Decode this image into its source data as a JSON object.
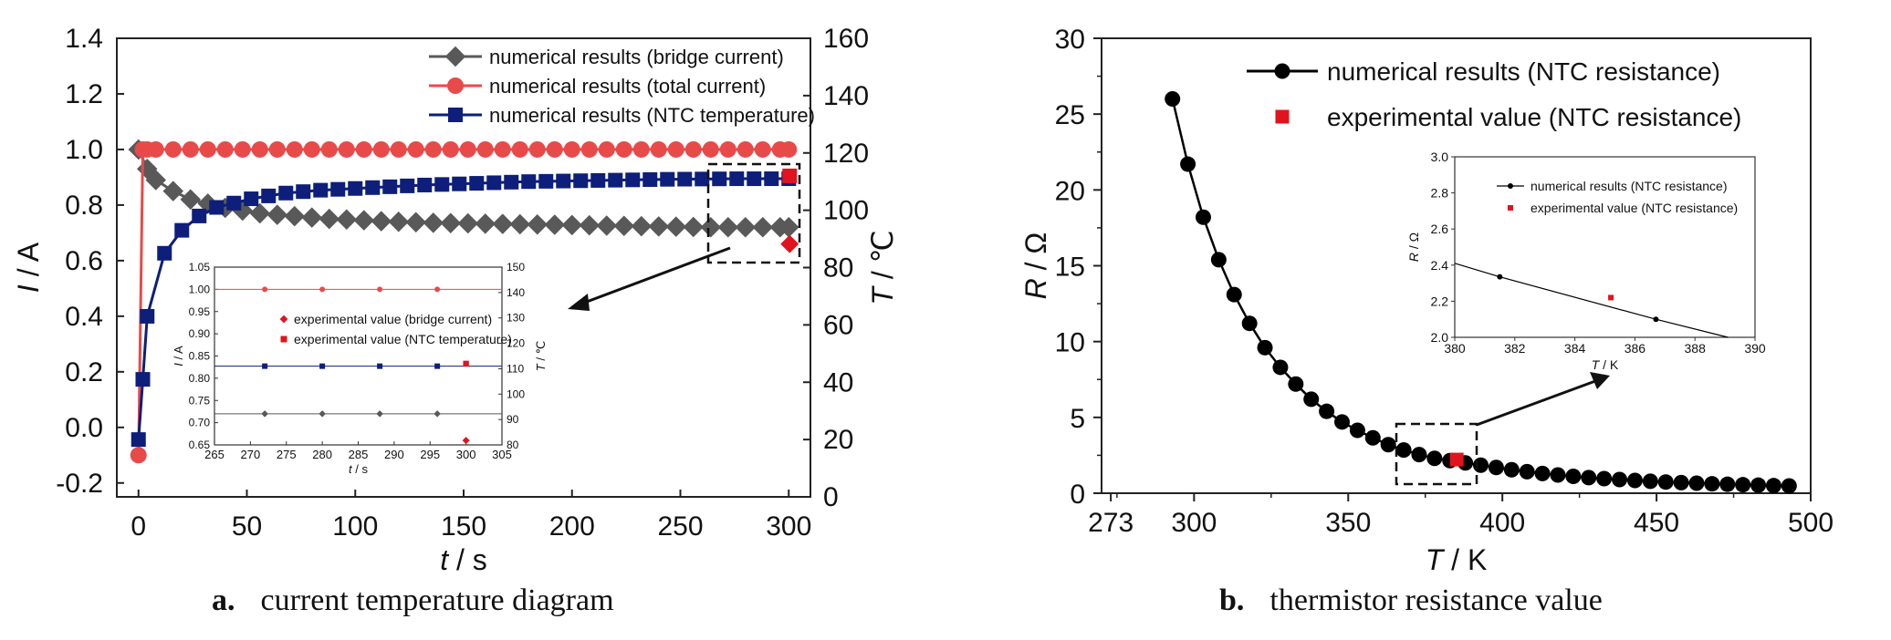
{
  "chart_data": [
    {
      "id": "a",
      "type": "line",
      "caption_letter": "a.",
      "caption_text": "current temperature diagram",
      "xlabel": "t / s",
      "ylabel_left": "I / A",
      "ylabel_right": "T / ℃",
      "xlim": [
        -10,
        310
      ],
      "xticks": [
        0,
        50,
        100,
        150,
        200,
        250,
        300
      ],
      "ylim_left": [
        -0.25,
        1.4
      ],
      "yticks_left": [
        -0.2,
        0.0,
        0.2,
        0.4,
        0.6,
        0.8,
        1.0,
        1.2,
        1.4
      ],
      "ylim_right": [
        0,
        160
      ],
      "yticks_right": [
        0,
        20,
        40,
        60,
        80,
        100,
        120,
        140,
        160
      ],
      "legend_position": "top-right",
      "series": [
        {
          "name": "numerical results (bridge current)",
          "axis": "left",
          "marker": "diamond",
          "color": "#595959",
          "x": [
            0,
            4,
            8,
            16,
            24,
            32,
            40,
            48,
            56,
            64,
            72,
            80,
            88,
            96,
            104,
            112,
            120,
            128,
            136,
            144,
            152,
            160,
            168,
            176,
            184,
            192,
            200,
            208,
            216,
            224,
            232,
            240,
            248,
            256,
            264,
            272,
            280,
            288,
            296,
            300
          ],
          "y": [
            1.0,
            0.93,
            0.89,
            0.85,
            0.82,
            0.805,
            0.79,
            0.78,
            0.77,
            0.765,
            0.76,
            0.755,
            0.75,
            0.748,
            0.745,
            0.742,
            0.74,
            0.738,
            0.736,
            0.735,
            0.734,
            0.733,
            0.732,
            0.731,
            0.73,
            0.729,
            0.728,
            0.727,
            0.726,
            0.725,
            0.724,
            0.723,
            0.722,
            0.721,
            0.72,
            0.72,
            0.72,
            0.72,
            0.72,
            0.72
          ]
        },
        {
          "name": "numerical results (total current)",
          "axis": "left",
          "marker": "circle",
          "color": "#e84a4a",
          "x": [
            0,
            2,
            4,
            8,
            16,
            24,
            32,
            40,
            48,
            56,
            64,
            72,
            80,
            88,
            96,
            104,
            112,
            120,
            128,
            136,
            144,
            152,
            160,
            168,
            176,
            184,
            192,
            200,
            208,
            216,
            224,
            232,
            240,
            248,
            256,
            264,
            272,
            280,
            288,
            296,
            300
          ],
          "y": [
            -0.1,
            1.0,
            1.0,
            1.0,
            1.0,
            1.0,
            1.0,
            1.0,
            1.0,
            1.0,
            1.0,
            1.0,
            1.0,
            1.0,
            1.0,
            1.0,
            1.0,
            1.0,
            1.0,
            1.0,
            1.0,
            1.0,
            1.0,
            1.0,
            1.0,
            1.0,
            1.0,
            1.0,
            1.0,
            1.0,
            1.0,
            1.0,
            1.0,
            1.0,
            1.0,
            1.0,
            1.0,
            1.0,
            1.0,
            1.0,
            1.0
          ]
        },
        {
          "name": "numerical results (NTC temperature)",
          "axis": "right",
          "marker": "square",
          "color": "#0d1f7a",
          "x": [
            0,
            2,
            4,
            12,
            20,
            28,
            36,
            44,
            52,
            60,
            68,
            76,
            84,
            92,
            100,
            108,
            116,
            124,
            132,
            140,
            148,
            156,
            164,
            172,
            180,
            188,
            196,
            204,
            212,
            220,
            228,
            236,
            244,
            252,
            260,
            268,
            276,
            284,
            292,
            300
          ],
          "y": [
            20,
            41,
            63,
            85,
            93,
            98,
            101,
            102.5,
            104,
            105,
            106,
            106.5,
            107,
            107.3,
            107.6,
            107.9,
            108.2,
            108.5,
            108.8,
            109,
            109.2,
            109.4,
            109.6,
            109.8,
            110,
            110.1,
            110.2,
            110.3,
            110.4,
            110.5,
            110.6,
            110.7,
            110.8,
            110.85,
            110.9,
            110.95,
            111,
            111,
            111,
            111
          ]
        }
      ],
      "experimental": [
        {
          "name": "experimental value (bridge current)",
          "axis": "left",
          "marker": "diamond",
          "color": "#e0141e",
          "x": 300,
          "y": 0.66
        },
        {
          "name": "experimental value (NTC temperature)",
          "axis": "right",
          "marker": "square",
          "color": "#e0141e",
          "x": 300,
          "y": 112
        }
      ],
      "inset": {
        "xlim": [
          265,
          305
        ],
        "xticks": [
          265,
          270,
          275,
          280,
          285,
          290,
          295,
          300,
          305
        ],
        "xlabel": "t / s",
        "ylabel_left": "I / A",
        "ylabel_right": "T / ℃",
        "ylim_left": [
          0.65,
          1.05
        ],
        "yticks_left": [
          0.65,
          0.7,
          0.75,
          0.8,
          0.85,
          0.9,
          0.95,
          1.0,
          1.05
        ],
        "ylim_right": [
          80,
          150
        ],
        "yticks_right": [
          80,
          90,
          100,
          110,
          120,
          130,
          140,
          150
        ],
        "legend": [
          "experimental value (bridge current)",
          "experimental value (NTC temperature)"
        ],
        "points_x": [
          272,
          280,
          288,
          296
        ]
      }
    },
    {
      "id": "b",
      "type": "line",
      "caption_letter": "b.",
      "caption_text": "thermistor resistance value",
      "xlabel": "T / K",
      "ylabel": "R / Ω",
      "xlim": [
        270,
        500
      ],
      "xticks": [
        273,
        300,
        350,
        400,
        450,
        500
      ],
      "ylim": [
        0,
        30
      ],
      "yticks": [
        0,
        5,
        10,
        15,
        20,
        25,
        30
      ],
      "legend_position": "top-right",
      "series": [
        {
          "name": "numerical results (NTC resistance)",
          "marker": "circle",
          "color": "#000000",
          "x": [
            293,
            298,
            303,
            308,
            313,
            318,
            323,
            328,
            333,
            338,
            343,
            348,
            353,
            358,
            363,
            368,
            373,
            378,
            383,
            388,
            393,
            398,
            403,
            408,
            413,
            418,
            423,
            428,
            433,
            438,
            443,
            448,
            453,
            458,
            463,
            468,
            473,
            478,
            483,
            488,
            493
          ],
          "y": [
            26,
            21.7,
            18.2,
            15.4,
            13.1,
            11.2,
            9.6,
            8.3,
            7.2,
            6.2,
            5.4,
            4.7,
            4.15,
            3.65,
            3.2,
            2.85,
            2.55,
            2.3,
            2.15,
            2.0,
            1.85,
            1.7,
            1.55,
            1.42,
            1.3,
            1.2,
            1.11,
            1.03,
            0.96,
            0.9,
            0.84,
            0.79,
            0.74,
            0.7,
            0.66,
            0.62,
            0.59,
            0.56,
            0.53,
            0.5,
            0.48
          ]
        }
      ],
      "experimental": [
        {
          "name": "experimental value (NTC resistance)",
          "marker": "square",
          "color": "#e0141e",
          "x": 385.2,
          "y": 2.22
        }
      ],
      "inset": {
        "xlim": [
          380,
          390
        ],
        "xticks": [
          380,
          382,
          384,
          386,
          388,
          390
        ],
        "xlabel": "T / K",
        "ylabel": "R / Ω",
        "ylim": [
          2.0,
          3.0
        ],
        "yticks": [
          2.0,
          2.2,
          2.4,
          2.6,
          2.8,
          3.0
        ],
        "legend": [
          "numerical results (NTC resistance)",
          "experimental value (NTC resistance)"
        ],
        "line_x": [
          380,
          381.5,
          386.7,
          389.1
        ],
        "line_y": [
          2.41,
          2.335,
          2.1,
          2.0
        ],
        "points_x": [
          381.5,
          386.7
        ],
        "points_y": [
          2.335,
          2.1
        ],
        "exp_x": 385.2,
        "exp_y": 2.22
      }
    }
  ]
}
